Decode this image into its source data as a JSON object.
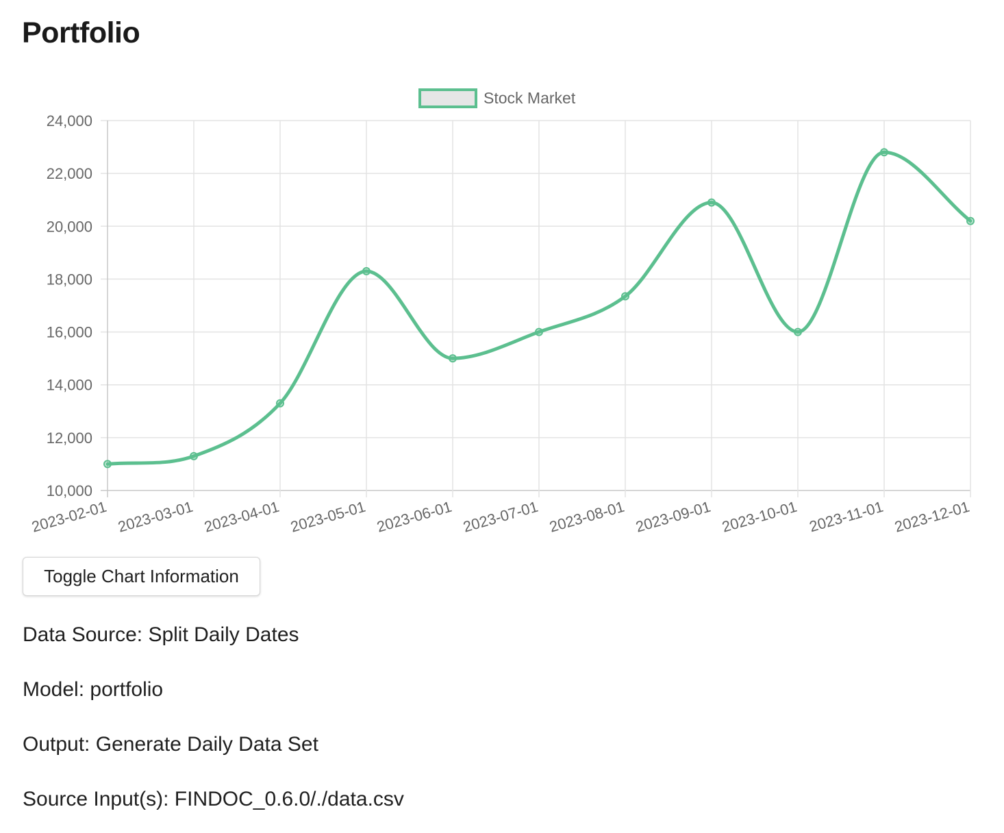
{
  "page": {
    "title": "Portfolio"
  },
  "chart_data": {
    "type": "line",
    "title": "",
    "xlabel": "",
    "ylabel": "",
    "categories": [
      "2023-02-01",
      "2023-03-01",
      "2023-04-01",
      "2023-05-01",
      "2023-06-01",
      "2023-07-01",
      "2023-08-01",
      "2023-09-01",
      "2023-10-01",
      "2023-11-01",
      "2023-12-01"
    ],
    "series": [
      {
        "name": "Stock Market",
        "values": [
          11000,
          11300,
          13300,
          18300,
          15000,
          16000,
          17350,
          20900,
          16000,
          22800,
          20200
        ],
        "color": "#5cbf8f"
      }
    ],
    "ylim": [
      10000,
      24000
    ],
    "yticks": [
      "10,000",
      "12,000",
      "14,000",
      "16,000",
      "18,000",
      "20,000",
      "22,000",
      "24,000"
    ],
    "grid": true,
    "legend": "top-center",
    "curve": "smooth"
  },
  "button": {
    "toggle_label": "Toggle Chart Information"
  },
  "info": {
    "data_source_label": "Data Source:",
    "data_source_value": "Split Daily Dates",
    "model_label": "Model:",
    "model_value": "portfolio",
    "output_label": "Output:",
    "output_value": "Generate Daily Data Set",
    "source_inputs_label": "Source Input(s):",
    "source_inputs_value": "FINDOC_0.6.0/./data.csv"
  }
}
